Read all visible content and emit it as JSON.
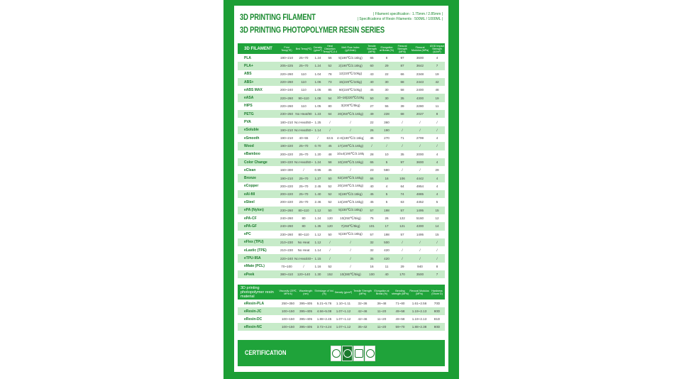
{
  "title1": "3D PRINTING FILAMENT",
  "title2": "3D PRINTING PHOTOPOLYMER RESIN SERIES",
  "spec_line1": "| Filament specification : 1.75mm / 2.85mm |",
  "spec_line2": "| Specifications of Resin Filaments : 500ML / 1000ML |",
  "filament": {
    "headers": [
      "3D FILAMENT",
      "Print Temp(℃)",
      "Bed Temp(℃)",
      "Density (g/cm³)",
      "Heat Distortion Temp(℃,0.45MPa)",
      "Melt Flow Index (g/10min)",
      "Tensile Strength (MPa)",
      "Elongation at Break (%)",
      "Flexural Strength (MPa)",
      "Flexural Modulus (MPa)",
      "IZOD Impact Strength (kJ/m²)"
    ],
    "rows": [
      [
        "PLA",
        "190~210",
        "25~70",
        "1.24",
        "56",
        "5(190℃/2.16kg)",
        "65",
        "8",
        "97",
        "3600",
        "4"
      ],
      [
        "PLA+",
        "205~225",
        "25~70",
        "1.24",
        "52",
        "2(190℃/2.16kg)",
        "60",
        "29",
        "87",
        "3642",
        "7"
      ],
      [
        "ABS",
        "220~260",
        "110",
        "1.04",
        "78",
        "12(220℃/10kg)",
        "43",
        "22",
        "66",
        "2348",
        "19"
      ],
      [
        "ABS+",
        "220~260",
        "110",
        "1.06",
        "73",
        "15(220℃/10kg)",
        "40",
        "30",
        "68",
        "2443",
        "42"
      ],
      [
        "eABS MAX",
        "200~240",
        "110",
        "1.05",
        "85",
        "60(220℃/10kg)",
        "45",
        "30",
        "58",
        "2400",
        "48"
      ],
      [
        "eASA",
        "220~260",
        "90~110",
        "1.08",
        "54",
        "10~16(220℃/10kg)",
        "50",
        "30",
        "35",
        "4300",
        "19"
      ],
      [
        "HIPS",
        "220~260",
        "110",
        "1.05",
        "80",
        "3(200℃/5kg)",
        "27",
        "55",
        "39",
        "2280",
        "11"
      ],
      [
        "PETG",
        "230~250",
        "No Heat/80",
        "1.23",
        "64",
        "20(250℃/2.16kg)",
        "49",
        "228",
        "68",
        "2027",
        "8"
      ],
      [
        "PVA",
        "180~210",
        "No Heat/50~60",
        "1.25",
        "/",
        "/",
        "22",
        "360",
        "/",
        "/",
        "/"
      ],
      [
        "eSoluble",
        "190~210",
        "No Heat/50~60",
        "1.14",
        "/",
        "/",
        "26",
        "190",
        "/",
        "/",
        "/"
      ],
      [
        "eSmooth",
        "190~210",
        "40~55",
        "/",
        "63.5",
        "4~6(190℃/2.16kg)",
        "46",
        "270",
        "71",
        "2799",
        "4"
      ],
      [
        "Wood",
        "190~220",
        "25~70",
        "0.70",
        "45",
        "17(190℃/2.16kg)",
        "/",
        "/",
        "/",
        "/",
        "/"
      ],
      [
        "eBamboo",
        "200~220",
        "25~70",
        "1.20",
        "48",
        "10±4(190℃/2.16kg)",
        "28",
        "10",
        "35",
        "2000",
        "4"
      ],
      [
        "Color Change",
        "190~220",
        "No Heat/50~60",
        "1.24",
        "58",
        "10(190℃/2.16kg)",
        "65",
        "5",
        "97",
        "3600",
        "4"
      ],
      [
        "eClean",
        "160~300",
        "/",
        "0.95",
        "45",
        "/",
        "23",
        "580",
        "/",
        "/",
        "29"
      ],
      [
        "Bronze",
        "190~210",
        "25~70",
        "1.27",
        "50",
        "62(190℃/2.16kg)",
        "66",
        "16",
        "106",
        "4442",
        "4"
      ],
      [
        "eCopper",
        "200~220",
        "25~70",
        "2.45",
        "52",
        "20(190℃/2.16kg)",
        "40",
        "4",
        "64",
        "4954",
        "4"
      ],
      [
        "eAl-fill",
        "200~220",
        "25~70",
        "1.40",
        "52",
        "8(190℃/2.16kg)",
        "45",
        "5",
        "74",
        "4885",
        "4"
      ],
      [
        "eSteel",
        "200~220",
        "25~70",
        "2.46",
        "52",
        "14(190℃/2.16kg)",
        "45",
        "5",
        "63",
        "4452",
        "5"
      ],
      [
        "ePA (Nylon)",
        "230~260",
        "80~110",
        "1.12",
        "50",
        "5(230℃/2.16kg)",
        "57",
        "198",
        "57",
        "1495",
        "15"
      ],
      [
        "ePA-CF",
        "240~260",
        "80",
        "1.24",
        "120",
        "10(250℃/5kg)",
        "75",
        "26",
        "122",
        "5160",
        "12"
      ],
      [
        "ePA-GF",
        "240~260",
        "80",
        "1.35",
        "120",
        "7(250℃/5kg)",
        "101",
        "17",
        "121",
        "4300",
        "14"
      ],
      [
        "ePC",
        "230~260",
        "80~110",
        "1.12",
        "50",
        "5(230℃/2.16kg)",
        "57",
        "198",
        "57",
        "1495",
        "15"
      ],
      [
        "eFlex (TPU)",
        "210~230",
        "No Heat",
        "1.12",
        "/",
        "/",
        "32",
        "500",
        "/",
        "/",
        "/"
      ],
      [
        "eLastic (TPE)",
        "210~230",
        "No Heat",
        "1.14",
        "/",
        "/",
        "32",
        "420",
        "/",
        "/",
        "/"
      ],
      [
        "eTPU-95A",
        "220~240",
        "No Heat/40~60",
        "1.15",
        "/",
        "/",
        "35",
        "420",
        "/",
        "/",
        "/"
      ],
      [
        "eMate (PCL)",
        "70~100",
        "/",
        "1.16",
        "52",
        "/",
        "16",
        "11",
        "29",
        "940",
        "8"
      ],
      [
        "ePeek",
        "380~410",
        "120~140",
        "1.30",
        "152",
        "10(380℃/5kg)",
        "100",
        "40",
        "170",
        "3500",
        "7"
      ]
    ]
  },
  "resin": {
    "headers": [
      "3D printing photopolymer resin material",
      "Viscosity (25℃, MPa·s)",
      "Wavelength (nm)",
      "Shrinkage of Vol. (%)",
      "Density (g/cm³)",
      "Tensile Strength (MPa)",
      "Elongation at Break (%)",
      "Bending strength (MPa)",
      "Flexural Modulus (MPa)",
      "Hardness (Shore D)"
    ],
    "rows": [
      [
        "eResin-PLA",
        "250~350",
        "395~405",
        "5.21~5.76",
        "1.10~1.11",
        "32~36",
        "36~48",
        "71~80",
        "1.61~2.56",
        "70D"
      ],
      [
        "eResin-JC",
        "100~150",
        "395~405",
        "4.56~5.08",
        "1.07~1.12",
        "42~46",
        "11~20",
        "49~58",
        "1.19~2.13",
        "80D"
      ],
      [
        "eResin-DC",
        "100~150",
        "395~405",
        "1.88~2.45",
        "1.07~1.12",
        "42~46",
        "11~20",
        "49~58",
        "1.19~2.13",
        "81D"
      ],
      [
        "eResin-NC",
        "100~150",
        "395~405",
        "3.72~4.24",
        "1.07~1.12",
        "35~42",
        "11~20",
        "59~70",
        "1.88~2.38",
        "80D"
      ]
    ]
  },
  "certification": {
    "label": "CERTIFICATION",
    "logos": [
      "REACH",
      "RoHS",
      "MSDS",
      "Non-toxic"
    ]
  }
}
